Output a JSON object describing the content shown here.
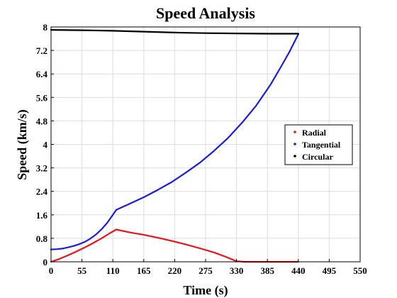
{
  "chart_data": {
    "type": "line",
    "title": "Speed Analysis",
    "xlabel": "Time (s)",
    "ylabel": "Speed (km/s)",
    "xlim": [
      0,
      550
    ],
    "ylim": [
      0,
      8
    ],
    "xticks": [
      0,
      55,
      110,
      165,
      220,
      275,
      330,
      385,
      440,
      495,
      550
    ],
    "yticks": [
      0,
      0.8,
      1.6,
      2.4,
      3.2,
      4,
      4.8,
      5.6,
      6.4,
      7.2,
      8
    ],
    "xtick_labels": [
      "0",
      "55",
      "110",
      "165",
      "220",
      "275",
      "330",
      "385",
      "440",
      "495",
      "550"
    ],
    "ytick_labels": [
      "0",
      "0.8",
      "1.6",
      "2.4",
      "3.2",
      "4",
      "4.8",
      "5.6",
      "6.4",
      "7.2",
      "8"
    ],
    "grid": true,
    "legend_position": "right",
    "series": [
      {
        "name": "Radial",
        "color": "#e8141d",
        "x": [
          0,
          15,
          30,
          45,
          60,
          75,
          90,
          105,
          116,
          140,
          165,
          190,
          215,
          240,
          265,
          290,
          310,
          330,
          345,
          365,
          385,
          405,
          425,
          440
        ],
        "y": [
          0,
          0.1,
          0.22,
          0.35,
          0.49,
          0.64,
          0.8,
          0.98,
          1.1,
          1.0,
          0.92,
          0.82,
          0.71,
          0.59,
          0.46,
          0.32,
          0.18,
          0.02,
          0.0,
          0.0,
          0.0,
          0.0,
          0.0,
          0.0
        ]
      },
      {
        "name": "Tangential",
        "color": "#1a1ed6",
        "x": [
          0,
          10,
          20,
          30,
          40,
          50,
          60,
          70,
          80,
          90,
          100,
          110,
          116,
          140,
          165,
          190,
          215,
          240,
          265,
          290,
          315,
          340,
          365,
          390,
          410,
          425,
          440
        ],
        "y": [
          0.42,
          0.43,
          0.45,
          0.49,
          0.54,
          0.6,
          0.68,
          0.79,
          0.93,
          1.11,
          1.33,
          1.6,
          1.77,
          1.98,
          2.2,
          2.45,
          2.72,
          3.04,
          3.38,
          3.78,
          4.22,
          4.74,
          5.32,
          6.02,
          6.67,
          7.18,
          7.75
        ]
      },
      {
        "name": "Circular",
        "color": "#000000",
        "x": [
          0,
          55,
          110,
          165,
          220,
          275,
          330,
          385,
          440
        ],
        "y": [
          7.9,
          7.89,
          7.87,
          7.84,
          7.81,
          7.79,
          7.78,
          7.77,
          7.77
        ]
      }
    ]
  }
}
